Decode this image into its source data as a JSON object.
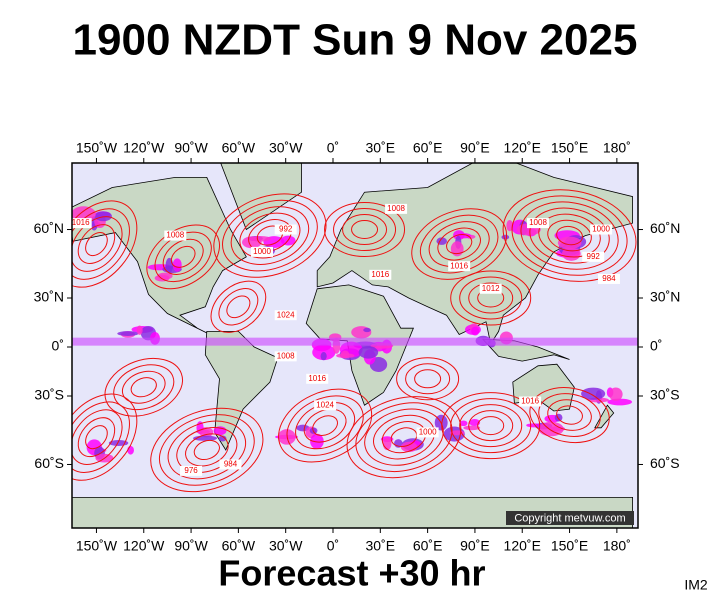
{
  "header": {
    "title": "1900 NZDT Sun 9 Nov 2025"
  },
  "map": {
    "lon_labels": [
      "150˚W",
      "120˚W",
      "90˚W",
      "60˚W",
      "30˚W",
      "0˚",
      "30˚E",
      "60˚E",
      "90˚E",
      "120˚E",
      "150˚E",
      "180˚"
    ],
    "lat_labels": [
      "60˚N",
      "30˚N",
      "0˚",
      "30˚S",
      "60˚S"
    ],
    "isobar_labels": [
      "1016",
      "1008",
      "1000",
      "992",
      "1024",
      "1016",
      "1008",
      "1016",
      "1012",
      "1008",
      "1000",
      "992",
      "984",
      "1016",
      "1024",
      "1008",
      "1016",
      "1000",
      "976",
      "984"
    ],
    "copyright": "Copyright metvuw.com"
  },
  "footer": {
    "caption": "Forecast +30 hr",
    "code": "IM2"
  }
}
